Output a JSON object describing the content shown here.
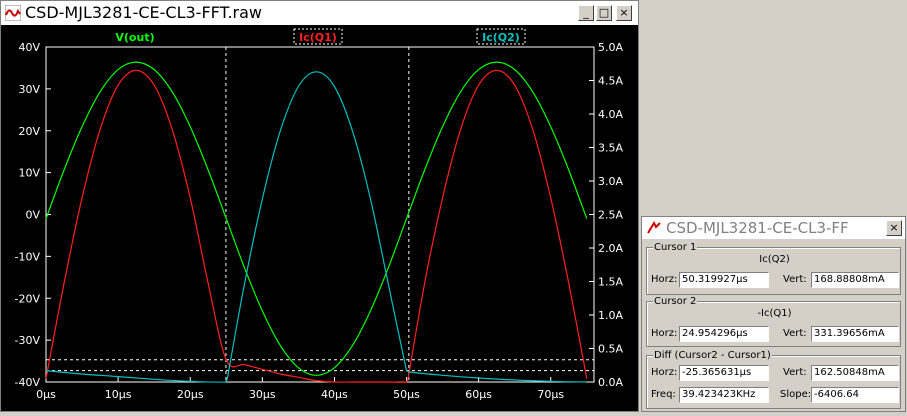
{
  "main_window": {
    "title": "CSD-MJL3281-CE-CL3-FFT.raw",
    "buttons": {
      "minimize": "_",
      "maximize": "□",
      "close": "×"
    }
  },
  "plot": {
    "traces": [
      {
        "label": "V(out)",
        "color": "#00ff00"
      },
      {
        "label": "Ic(Q1)",
        "color": "#ff2020"
      },
      {
        "label": "Ic(Q2)",
        "color": "#00c0c0"
      }
    ],
    "left_ticks": [
      "40V",
      "30V",
      "20V",
      "10V",
      "0V",
      "-10V",
      "-20V",
      "-30V",
      "-40V"
    ],
    "right_ticks": [
      "5.0A",
      "4.5A",
      "4.0A",
      "3.5A",
      "3.0A",
      "2.5A",
      "2.0A",
      "1.5A",
      "1.0A",
      "0.5A",
      "0.0A"
    ],
    "x_ticks": [
      "0µs",
      "10µs",
      "20µs",
      "30µs",
      "40µs",
      "50µs",
      "60µs",
      "70µs"
    ]
  },
  "chart_data": {
    "type": "line",
    "x_range": [
      0,
      76
    ],
    "y_left_range": [
      -40,
      40
    ],
    "y_right_range": [
      0,
      5
    ],
    "grid": false,
    "series": [
      {
        "name": "V(out)",
        "axis": "left",
        "color": "#00ff00",
        "x": [
          0,
          2.5,
          5,
          7.5,
          10,
          12.5,
          15,
          17.5,
          20,
          22.5,
          25,
          27.5,
          30,
          32.5,
          35,
          37.5,
          40,
          42.5,
          45,
          47.5,
          50,
          52.5,
          55,
          57.5,
          60,
          62.5,
          65,
          67.5,
          70,
          72.5,
          75
        ],
        "y": [
          -1,
          10.6,
          21.0,
          29.3,
          34.6,
          36.4,
          34.6,
          29.3,
          21.0,
          10.6,
          -1,
          -12.6,
          -23.0,
          -31.3,
          -36.6,
          -38.4,
          -36.6,
          -31.3,
          -23.0,
          -12.6,
          -1,
          10.6,
          21.0,
          29.3,
          34.6,
          36.4,
          34.6,
          29.3,
          21.0,
          10.6,
          -1
        ]
      },
      {
        "name": "Ic(Q1)",
        "axis": "right",
        "color": "#ff2020",
        "x": [
          0,
          2.5,
          5,
          7.5,
          10,
          12.5,
          15,
          17.5,
          20,
          22.5,
          25,
          27.5,
          30,
          32.5,
          35,
          37.5,
          40,
          42.5,
          45,
          47.5,
          50,
          50.2,
          52.5,
          55,
          57.5,
          60,
          62.5,
          65,
          67.5,
          70,
          72.5,
          75
        ],
        "y": [
          0.05,
          1.47,
          2.75,
          3.77,
          4.43,
          4.65,
          4.43,
          3.77,
          2.75,
          1.47,
          0.33,
          0.26,
          0.19,
          0.12,
          0.07,
          0.02,
          0.0,
          0.0,
          0.0,
          0.0,
          0.0,
          0.05,
          1.47,
          2.75,
          3.77,
          4.43,
          4.65,
          4.43,
          3.77,
          2.75,
          1.47,
          0.05
        ]
      },
      {
        "name": "Ic(Q2)",
        "axis": "right",
        "color": "#00c0c0",
        "x": [
          0,
          5,
          10,
          15,
          20,
          24.9,
          25.1,
          27.5,
          30,
          32.5,
          35,
          37.5,
          40,
          42.5,
          45,
          47.5,
          50,
          50.3,
          55,
          60,
          65,
          70,
          75
        ],
        "y": [
          0.17,
          0.12,
          0.08,
          0.04,
          0.01,
          0.0,
          0.03,
          1.45,
          2.73,
          3.75,
          4.41,
          4.63,
          4.41,
          3.75,
          2.73,
          1.45,
          0.17,
          0.15,
          0.1,
          0.06,
          0.03,
          0.01,
          0.0
        ]
      }
    ],
    "cursors": {
      "x": [
        24.954296,
        50.319927
      ],
      "y_right": [
        0.33139656,
        0.16888808
      ]
    }
  },
  "cursor_window": {
    "title": "CSD-MJL3281-CE-CL3-FF",
    "close": "×",
    "cursor1": {
      "group": "Cursor 1",
      "trace": "Ic(Q2)",
      "horz_label": "Horz:",
      "horz": "50.319927µs",
      "vert_label": "Vert:",
      "vert": "168.88808mA"
    },
    "cursor2": {
      "group": "Cursor 2",
      "trace": "-Ic(Q1)",
      "horz_label": "Horz:",
      "horz": "24.954296µs",
      "vert_label": "Vert:",
      "vert": "331.39656mA"
    },
    "diff": {
      "group": "Diff (Cursor2 - Cursor1)",
      "horz_label": "Horz:",
      "horz": "-25.365631µs",
      "vert_label": "Vert:",
      "vert": "162.50848mA",
      "freq_label": "Freq:",
      "freq": "39.423423KHz",
      "slope_label": "Slope:",
      "slope": "-6406.64"
    }
  }
}
